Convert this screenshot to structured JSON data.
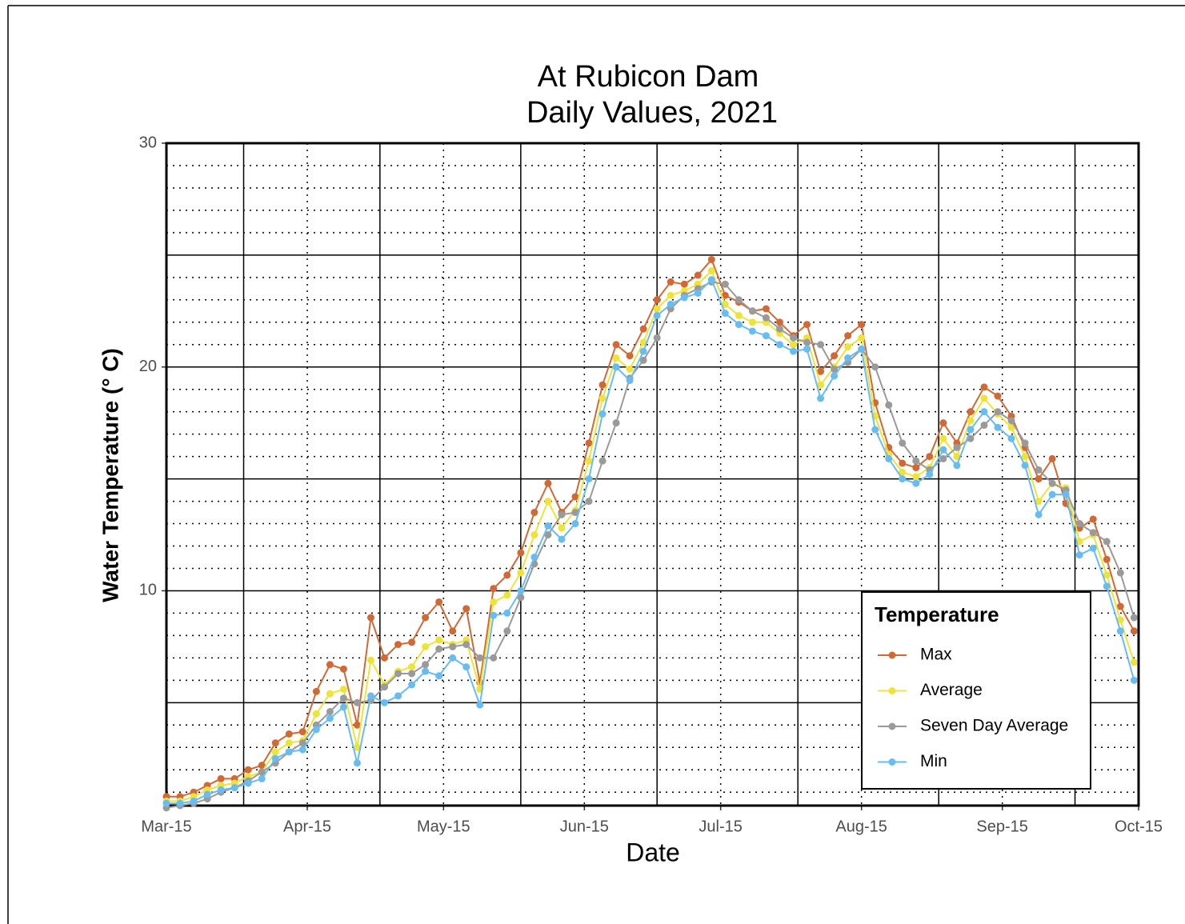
{
  "chart_data": {
    "type": "line",
    "title": "At Rubicon Dam",
    "subtitle": "Daily Values, 2021",
    "x_label": "Date",
    "y_label": "Water Temperature (° C)",
    "legend_title": "Temperature",
    "legend_position": "bottom-right",
    "x": [
      "Mar-15",
      "Mar-18",
      "Mar-21",
      "Mar-24",
      "Mar-27",
      "Mar-30",
      "Apr-02",
      "Apr-05",
      "Apr-08",
      "Apr-11",
      "Apr-14",
      "Apr-17",
      "Apr-20",
      "Apr-23",
      "Apr-26",
      "Apr-29",
      "May-02",
      "May-05",
      "May-08",
      "May-11",
      "May-14",
      "May-17",
      "May-20",
      "May-23",
      "May-26",
      "May-29",
      "Jun-01",
      "Jun-04",
      "Jun-07",
      "Jun-10",
      "Jun-13",
      "Jun-16",
      "Jun-19",
      "Jun-22",
      "Jun-25",
      "Jun-28",
      "Jul-01",
      "Jul-04",
      "Jul-07",
      "Jul-10",
      "Jul-13",
      "Jul-16",
      "Jul-19",
      "Jul-22",
      "Jul-25",
      "Jul-28",
      "Jul-31",
      "Aug-03",
      "Aug-06",
      "Aug-09",
      "Aug-12",
      "Aug-15",
      "Aug-18",
      "Aug-21",
      "Aug-24",
      "Aug-27",
      "Aug-30",
      "Sep-02",
      "Sep-05",
      "Sep-08",
      "Sep-11",
      "Sep-14",
      "Sep-17",
      "Sep-20",
      "Sep-23",
      "Sep-26",
      "Sep-29",
      "Oct-02",
      "Oct-05",
      "Oct-08",
      "Oct-11",
      "Oct-14"
    ],
    "series": [
      {
        "name": "Max",
        "color": "#cf6a37",
        "values": [
          0.8,
          0.8,
          1.0,
          1.3,
          1.6,
          1.6,
          2.0,
          2.2,
          3.2,
          3.6,
          3.7,
          5.5,
          6.7,
          6.5,
          4.0,
          8.8,
          7.0,
          7.6,
          7.7,
          8.8,
          9.5,
          8.2,
          9.2,
          5.9,
          10.1,
          10.7,
          11.7,
          13.5,
          14.8,
          13.5,
          14.2,
          16.6,
          19.2,
          21.0,
          20.5,
          21.7,
          23.0,
          23.8,
          23.7,
          24.1,
          24.8,
          23.2,
          22.9,
          22.5,
          22.6,
          22.0,
          21.4,
          21.9,
          19.8,
          20.5,
          21.4,
          21.9,
          18.4,
          16.4,
          15.7,
          15.5,
          16.0,
          17.5,
          16.6,
          18.0,
          19.1,
          18.7,
          17.8,
          16.4,
          15.0,
          15.9,
          13.9,
          12.8,
          13.2,
          11.4,
          9.3,
          8.2
        ]
      },
      {
        "name": "Average",
        "color": "#ede33a",
        "values": [
          0.6,
          0.6,
          0.8,
          1.1,
          1.3,
          1.4,
          1.7,
          1.9,
          2.8,
          3.2,
          3.3,
          4.5,
          5.4,
          5.6,
          3.0,
          6.9,
          5.8,
          6.4,
          6.6,
          7.5,
          7.8,
          7.6,
          7.8,
          5.6,
          9.5,
          9.8,
          10.8,
          12.5,
          14.0,
          12.8,
          13.6,
          15.8,
          18.6,
          20.4,
          19.9,
          21.1,
          22.6,
          23.2,
          23.4,
          23.7,
          24.3,
          22.8,
          22.3,
          22.0,
          22.0,
          21.5,
          21.0,
          21.3,
          19.2,
          20.0,
          20.9,
          21.3,
          17.8,
          16.1,
          15.3,
          15.1,
          15.5,
          16.8,
          16.0,
          17.6,
          18.6,
          17.9,
          17.3,
          16.0,
          14.0,
          14.8,
          14.6,
          12.2,
          12.5,
          10.7,
          8.7,
          6.8
        ]
      },
      {
        "name": "Seven Day Average",
        "color": "#9a9a9a",
        "values": [
          0.3,
          0.4,
          0.5,
          0.7,
          1.0,
          1.2,
          1.5,
          1.9,
          2.3,
          2.8,
          3.2,
          4.0,
          4.6,
          5.2,
          5.0,
          5.1,
          5.7,
          6.3,
          6.3,
          6.7,
          7.4,
          7.5,
          7.6,
          7.0,
          7.0,
          8.2,
          9.7,
          11.2,
          12.5,
          13.4,
          13.5,
          14.0,
          15.8,
          17.5,
          19.5,
          20.3,
          21.3,
          22.6,
          23.2,
          23.5,
          23.8,
          23.7,
          23.0,
          22.5,
          22.2,
          21.7,
          21.3,
          21.1,
          21.0,
          19.9,
          20.2,
          20.8,
          20.0,
          18.3,
          16.6,
          15.8,
          15.4,
          15.9,
          16.4,
          16.8,
          17.4,
          18.0,
          17.6,
          16.6,
          15.4,
          14.8,
          14.5,
          13.0,
          12.6,
          12.2,
          10.8,
          8.8
        ]
      },
      {
        "name": "Min",
        "color": "#68bcf2",
        "values": [
          0.5,
          0.5,
          0.6,
          0.9,
          1.1,
          1.2,
          1.4,
          1.6,
          2.5,
          2.8,
          2.9,
          3.8,
          4.3,
          4.8,
          2.3,
          5.3,
          5.0,
          5.3,
          5.8,
          6.4,
          6.2,
          7.0,
          6.6,
          4.9,
          8.9,
          9.0,
          10.0,
          11.5,
          12.9,
          12.3,
          13.0,
          15.0,
          17.9,
          20.0,
          19.4,
          20.7,
          22.3,
          22.8,
          23.1,
          23.3,
          23.9,
          22.4,
          21.9,
          21.6,
          21.4,
          21.0,
          20.7,
          20.8,
          18.6,
          19.6,
          20.4,
          20.8,
          17.2,
          15.9,
          15.0,
          14.8,
          15.2,
          16.3,
          15.6,
          17.2,
          18.0,
          17.3,
          16.8,
          15.6,
          13.4,
          14.3,
          14.3,
          11.6,
          11.9,
          10.2,
          8.2,
          6.0
        ]
      }
    ],
    "xlim": [
      "Mar-15",
      "Oct-15"
    ],
    "xticks": [
      "Mar-15",
      "Apr-15",
      "May-15",
      "Jun-15",
      "Jul-15",
      "Aug-15",
      "Sep-15",
      "Oct-15"
    ],
    "xgrid_major": [
      "Apr-01",
      "May-01",
      "Jun-01",
      "Jul-01",
      "Aug-01",
      "Sep-01",
      "Oct-01"
    ],
    "ylim": [
      0.4,
      30
    ],
    "yticks": [
      10,
      20,
      30
    ],
    "ygrid_major": [
      5,
      15,
      25
    ],
    "ygrid_minor": [
      1,
      2,
      3,
      4,
      6,
      7,
      8,
      9,
      11,
      12,
      13,
      14,
      16,
      17,
      18,
      19,
      21,
      22,
      23,
      24,
      26,
      27,
      28,
      29
    ],
    "grid": true
  }
}
